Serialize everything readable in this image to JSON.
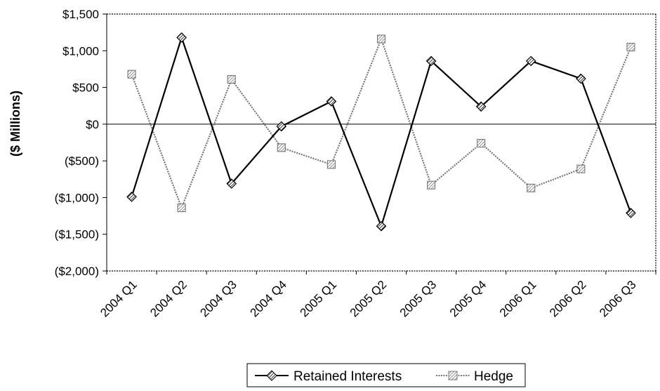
{
  "chart_data": {
    "type": "line",
    "title": "",
    "xlabel": "",
    "ylabel": "($ Millions)",
    "ylim": [
      -2000,
      1500
    ],
    "yticks": [
      1500,
      1000,
      500,
      0,
      -500,
      -1000,
      -1500,
      -2000
    ],
    "ytick_labels": [
      "$1,500",
      "$1,000",
      "$500",
      "$0",
      "($500)",
      "($1,000)",
      "($1,500)",
      "($2,000)"
    ],
    "categories": [
      "2004 Q1",
      "2004 Q2",
      "2004 Q3",
      "2004 Q4",
      "2005 Q1",
      "2005 Q2",
      "2005 Q3",
      "2005 Q4",
      "2006 Q1",
      "2006 Q2",
      "2006 Q3"
    ],
    "grid": false,
    "legend_position": "bottom",
    "series": [
      {
        "name": "Retained Interests",
        "values": [
          -990,
          1180,
          -810,
          -30,
          310,
          -1390,
          860,
          240,
          860,
          620,
          -1210
        ],
        "color": "#000000",
        "marker": "diamond-hatched"
      },
      {
        "name": "Hedge",
        "values": [
          680,
          -1140,
          610,
          -320,
          -550,
          1160,
          -830,
          -260,
          -870,
          -610,
          1050
        ],
        "color": "#777777",
        "marker": "square-hatched"
      }
    ]
  }
}
